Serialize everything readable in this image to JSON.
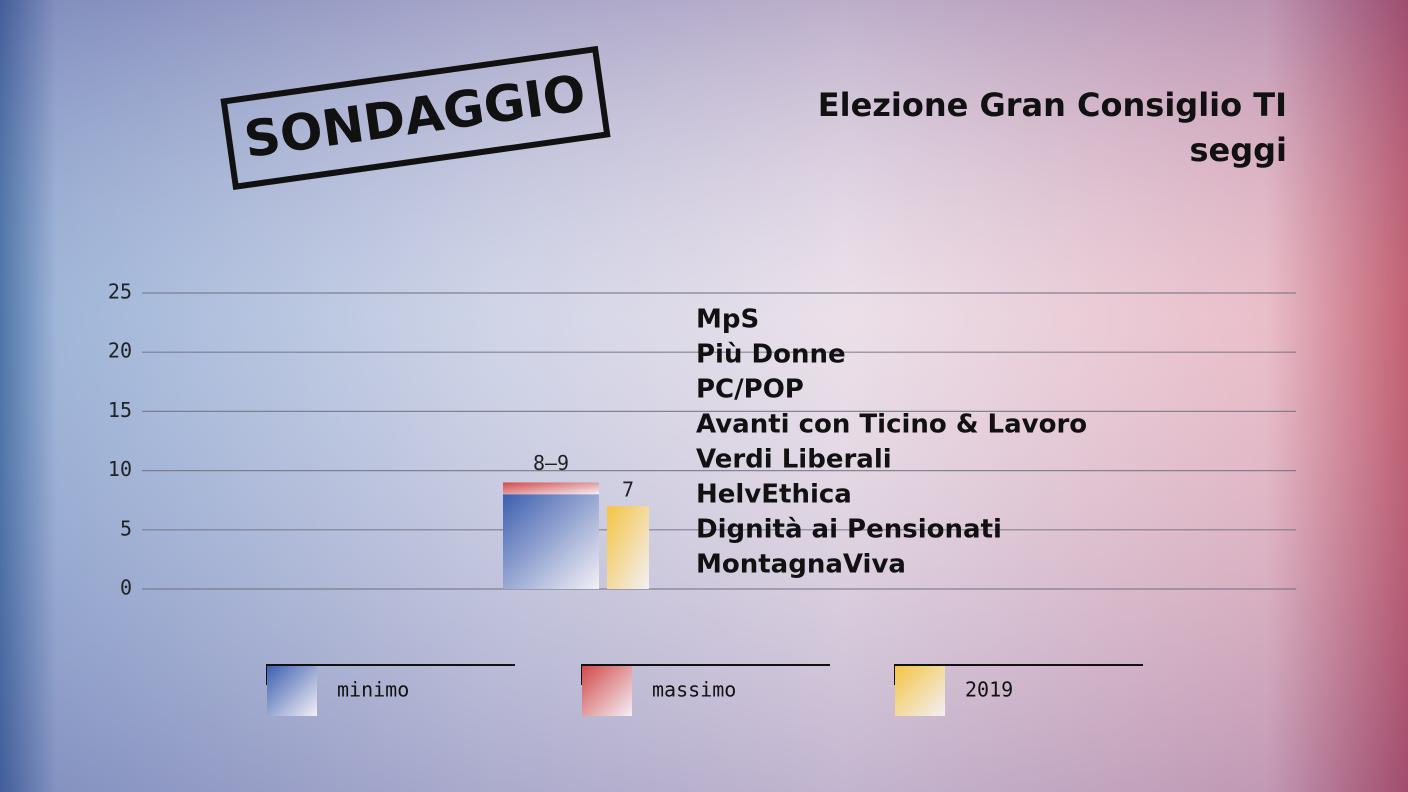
{
  "chart_data": {
    "type": "bar",
    "tag": "SONDAGGIO",
    "title": "Elezione Gran Consiglio TI",
    "subtitle": "seggi",
    "categories": [
      null
    ],
    "series": [
      {
        "name": "minimo",
        "color": "#3d5fb0",
        "values": [
          8
        ]
      },
      {
        "name": "massimo",
        "color": "#d24a4a",
        "values": [
          9
        ],
        "value_labels": [
          "8–9"
        ]
      },
      {
        "name": "2019",
        "color": "#f4c443",
        "values": [
          7
        ]
      }
    ],
    "annotations": [
      "MpS",
      "Più Donne",
      "PC/POP",
      "Avanti con Ticino & Lavoro",
      "Verdi Liberali",
      "HelvEthica",
      "Dignità ai Pensionati",
      "MontagnaViva"
    ],
    "ylim": [
      0,
      25
    ],
    "yticks": [
      0,
      5,
      10,
      15,
      20,
      25
    ],
    "grid": true
  }
}
